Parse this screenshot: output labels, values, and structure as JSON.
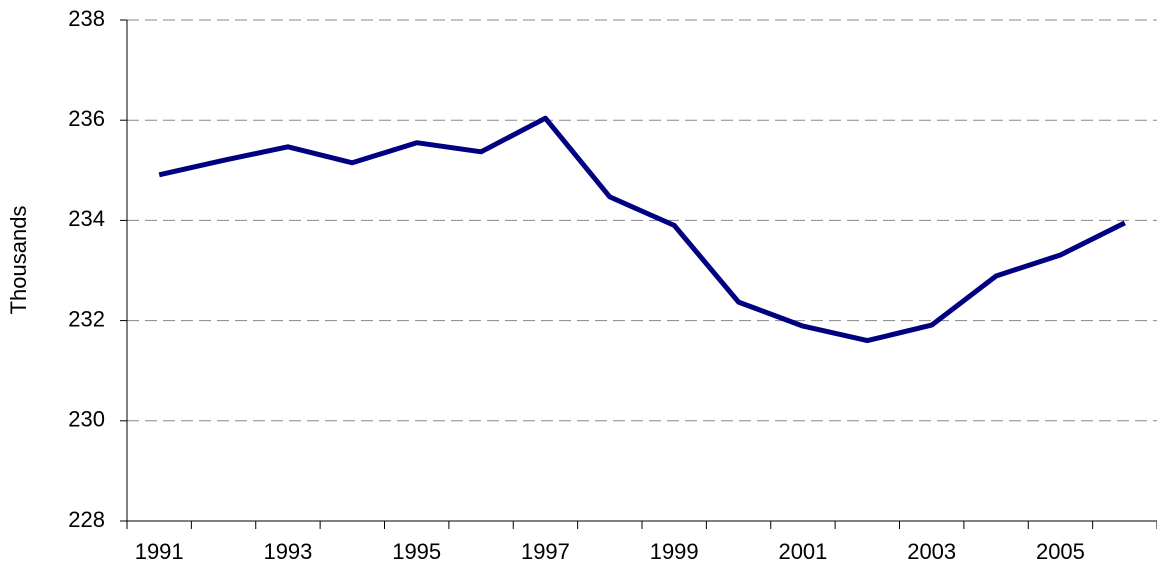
{
  "chart_data": {
    "type": "line",
    "y_label": "Thousands",
    "categories": [
      "1991",
      null,
      "1993",
      null,
      "1995",
      null,
      "1997",
      null,
      "1999",
      null,
      "2001",
      null,
      "2003",
      null,
      "2005",
      null
    ],
    "series": [
      {
        "color": "#000080",
        "values": [
          234.91,
          235.2,
          235.47,
          235.15,
          235.55,
          235.37,
          236.04,
          234.47,
          233.9,
          232.37,
          231.89,
          231.6,
          231.91,
          232.89,
          233.31,
          233.95
        ]
      }
    ],
    "ylim": [
      228,
      238
    ],
    "yticks": [
      228,
      230,
      232,
      234,
      236,
      238
    ],
    "grid": true
  }
}
